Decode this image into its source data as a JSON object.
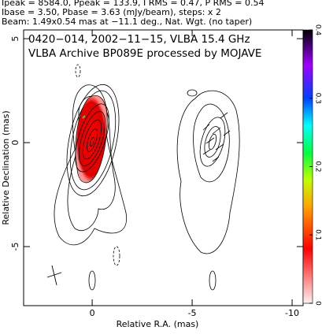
{
  "chart_data": {
    "type": "contour",
    "header": [
      "Ipeak = 8584.0, Ppeak = 133.9, I RMS = 0.47, P RMS = 0.54",
      "Ibase = 3.50, Pbase = 3.63 (mJy/beam), steps: x 2",
      "Beam: 1.49x0.54 mas at −11.1 deg., Nat. Wgt. (no taper)"
    ],
    "title": [
      "0420−014, 2002−11−15, VLBA 15.4 GHz",
      "VLBA Archive BP089E processed by MOJAVE"
    ],
    "xlabel": "Relative R.A. (mas)",
    "ylabel": "Relative Declination (mas)",
    "xlim": [
      3.43,
      -10.55
    ],
    "ylim": [
      -7.84,
      5.42
    ],
    "xticks": [
      0,
      -5,
      -10
    ],
    "yticks": [
      -5,
      0,
      5
    ],
    "colorbar": {
      "lim": [
        0,
        0.4
      ],
      "ticks": [
        0,
        0.1,
        0.2,
        0.3,
        0.4
      ]
    }
  }
}
